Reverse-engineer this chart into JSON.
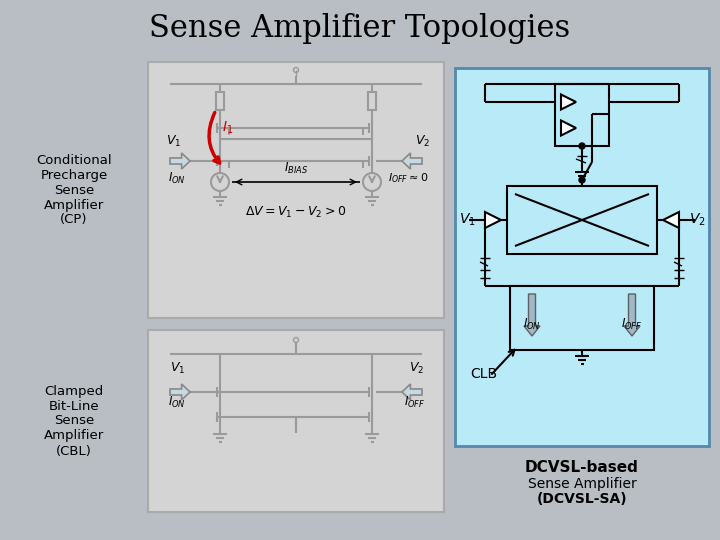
{
  "title": "Sense Amplifier Topologies",
  "title_fontsize": 22,
  "bg_color": "#b8bec4",
  "cp_box_color": "#d4d4d4",
  "cbl_box_color": "#d4d4d4",
  "dcvsl_box_color": "#b8eaf8",
  "text_color": "#000000",
  "red_color": "#cc0000",
  "gc": "#9a9a9a",
  "left_label_cp": "Conditional\nPrecharge\nSense\nAmplifier\n(CP)",
  "left_label_cbl": "Clamped\nBit-Line\nSense\nAmplifier\n(CBL)",
  "dcvsl_label1": "DCVSL-based",
  "dcvsl_label2": "Sense Amplifier",
  "dcvsl_label3": "(DCVSL-SA)"
}
